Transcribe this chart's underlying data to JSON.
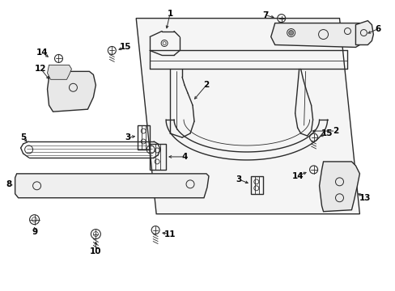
{
  "bg_color": "#ffffff",
  "line_color": "#2a2a2a",
  "label_color": "#000000",
  "fig_width": 4.89,
  "fig_height": 3.6,
  "dpi": 100,
  "arrow_color": "#2a2a2a",
  "parts_lw": 1.0,
  "thin_lw": 0.6,
  "label_fs": 7.5
}
